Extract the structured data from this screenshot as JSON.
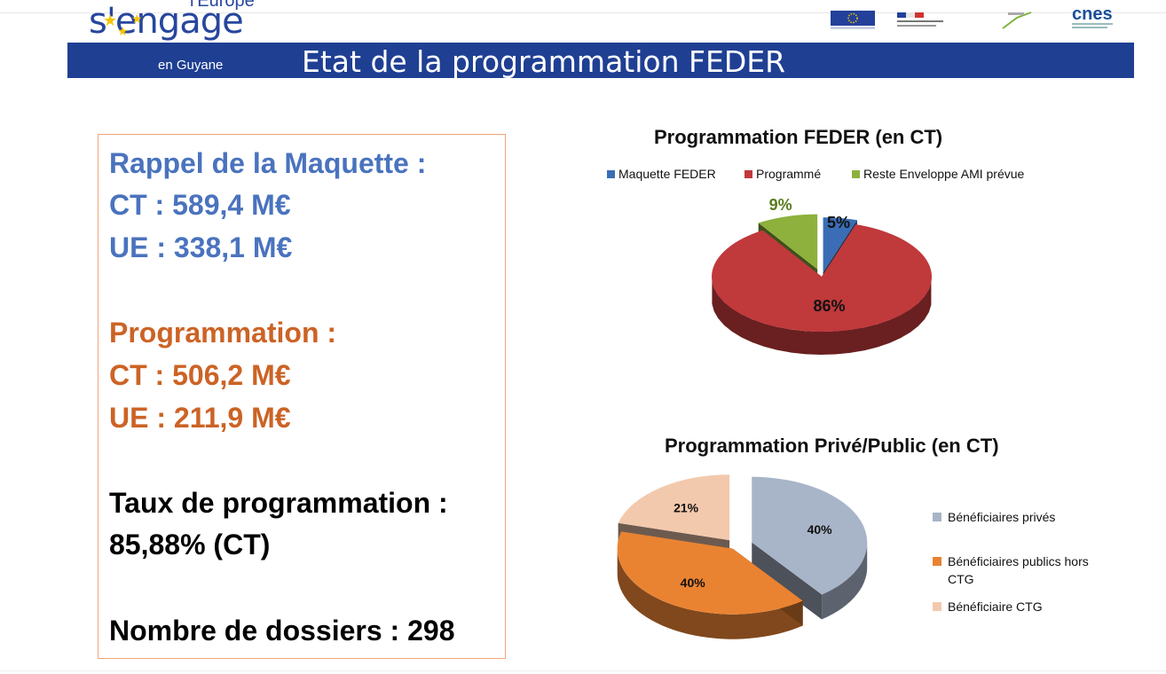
{
  "header": {
    "brand_top": "l'Europe",
    "brand_main": "s'engage",
    "brand_sub": "en Guyane",
    "title": "Etat de la programmation FEDER",
    "partner_logo_cnes": "cnes"
  },
  "summary": {
    "maquette_title": "Rappel de la Maquette :",
    "maquette_ct": "CT : 589,4 M€",
    "maquette_ue": "UE : 338,1 M€",
    "prog_title": "Programmation :",
    "prog_ct": "CT : 506,2 M€",
    "prog_ue": "UE : 211,9 M€",
    "taux_label": "Taux de programmation :",
    "taux_value": "85,88% (CT)",
    "dossiers": "Nombre de dossiers : 298"
  },
  "colors": {
    "header_blue": "#1f3f93",
    "text_blue": "#4a73be",
    "text_orange": "#cc6325"
  },
  "chart_data": [
    {
      "type": "pie",
      "title": "Programmation FEDER (en CT)",
      "legend_position": "top",
      "categories": [
        "Maquette FEDER",
        "Programmé",
        "Reste Enveloppe AMI prévue"
      ],
      "values": [
        5,
        86,
        9
      ],
      "data_labels": [
        "5%",
        "86%",
        "9%"
      ],
      "colors": [
        "#3a6db5",
        "#c0393b",
        "#8db13c"
      ]
    },
    {
      "type": "pie",
      "title": "Programmation Privé/Public (en CT)",
      "legend_position": "right",
      "categories": [
        "Bénéficiaires privés",
        "Bénéficiaires publics hors CTG",
        "Bénéficiaire CTG"
      ],
      "values": [
        40,
        40,
        21
      ],
      "data_labels": [
        "40%",
        "40%",
        "21%"
      ],
      "colors": [
        "#a8b4c8",
        "#e98332",
        "#f3c9ad"
      ]
    }
  ]
}
